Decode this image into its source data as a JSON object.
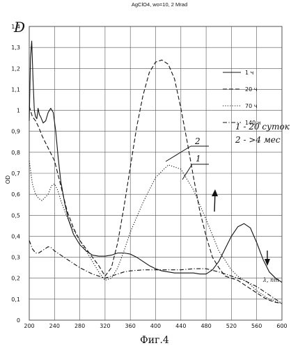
{
  "chart_data": {
    "type": "line",
    "title": "AgClO4, wo=10, 2 Mrad",
    "ylabel": "OD",
    "ylabel_hand": "D",
    "xlabel": "λ, nm",
    "xlim": [
      200,
      600
    ],
    "ylim": [
      0,
      1.4
    ],
    "xticks": [
      "200",
      "240",
      "280",
      "320",
      "360",
      "400",
      "440",
      "480",
      "520",
      "560",
      "600"
    ],
    "yticks": [
      "0",
      "0,1",
      "0,2",
      "0,3",
      "0,4",
      "0,5",
      "0,6",
      "0,7",
      "0,8",
      "0,9",
      "1",
      "1,1",
      "1,2",
      "1,3",
      "1,4"
    ],
    "grid": true,
    "legend_position": "top-right",
    "series": [
      {
        "name": "1 ч",
        "style": "solid",
        "x": [
          200,
          202,
          204,
          206,
          208,
          210,
          212,
          214,
          216,
          218,
          222,
          226,
          230,
          234,
          238,
          242,
          246,
          250,
          256,
          262,
          270,
          280,
          290,
          300,
          310,
          320,
          330,
          340,
          350,
          360,
          370,
          380,
          390,
          400,
          410,
          420,
          430,
          440,
          450,
          460,
          470,
          480,
          490,
          500,
          510,
          520,
          530,
          540,
          550,
          560,
          570,
          580,
          590,
          600
        ],
        "y": [
          0.95,
          1.25,
          1.33,
          1.15,
          1.0,
          0.97,
          0.96,
          1.01,
          0.98,
          0.97,
          0.94,
          0.95,
          0.99,
          1.01,
          0.99,
          0.9,
          0.77,
          0.66,
          0.56,
          0.48,
          0.41,
          0.36,
          0.33,
          0.31,
          0.305,
          0.305,
          0.31,
          0.32,
          0.32,
          0.315,
          0.3,
          0.28,
          0.26,
          0.245,
          0.235,
          0.23,
          0.225,
          0.225,
          0.225,
          0.225,
          0.22,
          0.22,
          0.24,
          0.28,
          0.34,
          0.4,
          0.445,
          0.46,
          0.44,
          0.37,
          0.29,
          0.23,
          0.2,
          0.18
        ]
      },
      {
        "name": "20 ч",
        "style": "dashed",
        "x": [
          200,
          205,
          210,
          215,
          220,
          230,
          240,
          250,
          260,
          270,
          280,
          290,
          300,
          310,
          320,
          330,
          340,
          350,
          360,
          370,
          380,
          390,
          400,
          410,
          420,
          430,
          440,
          450,
          460,
          470,
          480,
          490,
          500,
          510,
          520,
          530,
          540,
          550,
          560,
          570,
          580,
          590,
          600
        ],
        "y": [
          1.02,
          0.97,
          0.95,
          0.92,
          0.88,
          0.82,
          0.76,
          0.64,
          0.52,
          0.44,
          0.38,
          0.34,
          0.3,
          0.26,
          0.21,
          0.25,
          0.37,
          0.54,
          0.73,
          0.92,
          1.07,
          1.18,
          1.23,
          1.24,
          1.22,
          1.15,
          1.01,
          0.85,
          0.68,
          0.52,
          0.4,
          0.3,
          0.25,
          0.21,
          0.2,
          0.19,
          0.17,
          0.15,
          0.13,
          0.11,
          0.095,
          0.085,
          0.08
        ]
      },
      {
        "name": "70 ч",
        "style": "dotted",
        "x": [
          200,
          205,
          210,
          215,
          220,
          230,
          235,
          240,
          245,
          250,
          260,
          270,
          280,
          290,
          300,
          310,
          320,
          330,
          340,
          350,
          360,
          380,
          400,
          420,
          440,
          460,
          480,
          500,
          520,
          530,
          540,
          550,
          560,
          570,
          580,
          590,
          600
        ],
        "y": [
          0.76,
          0.65,
          0.6,
          0.58,
          0.57,
          0.6,
          0.64,
          0.65,
          0.62,
          0.57,
          0.49,
          0.43,
          0.38,
          0.33,
          0.28,
          0.23,
          0.19,
          0.2,
          0.25,
          0.33,
          0.42,
          0.56,
          0.68,
          0.74,
          0.72,
          0.62,
          0.48,
          0.33,
          0.24,
          0.21,
          0.19,
          0.17,
          0.14,
          0.12,
          0.1,
          0.09,
          0.08
        ]
      },
      {
        "name": "140 ч",
        "style": "dash-dot",
        "x": [
          200,
          205,
          210,
          215,
          220,
          225,
          230,
          235,
          240,
          250,
          260,
          270,
          280,
          290,
          300,
          310,
          320,
          330,
          340,
          350,
          360,
          380,
          400,
          420,
          440,
          460,
          480,
          500,
          510,
          520,
          530,
          540,
          550,
          560,
          570,
          580,
          590,
          600
        ],
        "y": [
          0.38,
          0.34,
          0.32,
          0.32,
          0.33,
          0.34,
          0.35,
          0.345,
          0.33,
          0.31,
          0.29,
          0.27,
          0.25,
          0.235,
          0.22,
          0.21,
          0.2,
          0.21,
          0.22,
          0.23,
          0.235,
          0.24,
          0.24,
          0.24,
          0.24,
          0.245,
          0.245,
          0.23,
          0.22,
          0.21,
          0.2,
          0.19,
          0.175,
          0.16,
          0.14,
          0.12,
          0.1,
          0.08
        ]
      }
    ],
    "annotations": [
      {
        "text": "1 - 20 суток"
      },
      {
        "text": "2 - >4 мес"
      },
      {
        "text": "2"
      },
      {
        "text": "1"
      }
    ],
    "caption": "Фиг.4"
  }
}
